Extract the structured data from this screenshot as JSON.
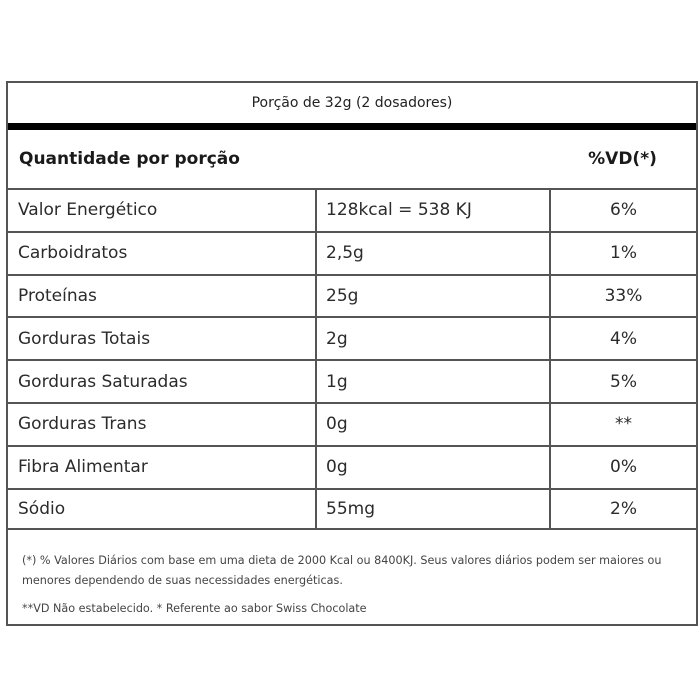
{
  "label": {
    "serving": "Porção de 32g (2 dosadores)",
    "header": {
      "quantity": "Quantidade por porção",
      "dv": "%VD(*)"
    },
    "rows": [
      {
        "nutrient": "Valor Energético",
        "amount": "128kcal = 538 KJ",
        "dv": "6%"
      },
      {
        "nutrient": "Carboidratos",
        "amount": "2,5g",
        "dv": "1%"
      },
      {
        "nutrient": "Proteínas",
        "amount": "25g",
        "dv": "33%"
      },
      {
        "nutrient": "Gorduras Totais",
        "amount": "2g",
        "dv": "4%"
      },
      {
        "nutrient": "Gorduras Saturadas",
        "amount": "1g",
        "dv": "5%"
      },
      {
        "nutrient": "Gorduras Trans",
        "amount": "0g",
        "dv": "**"
      },
      {
        "nutrient": "Fibra Alimentar",
        "amount": "0g",
        "dv": "0%"
      },
      {
        "nutrient": "Sódio",
        "amount": "55mg",
        "dv": "2%"
      }
    ],
    "footnotes": [
      "(*) % Valores Diários com base em uma dieta de 2000 Kcal ou 8400KJ. Seus valores diários podem ser maiores ou menores dependendo de suas necessidades energéticas.",
      "**VD Não estabelecido. * Referente ao sabor Swiss Chocolate"
    ]
  },
  "colors": {
    "border": "#555555",
    "thick_bar": "#000000",
    "text": "#2b2b2b"
  }
}
